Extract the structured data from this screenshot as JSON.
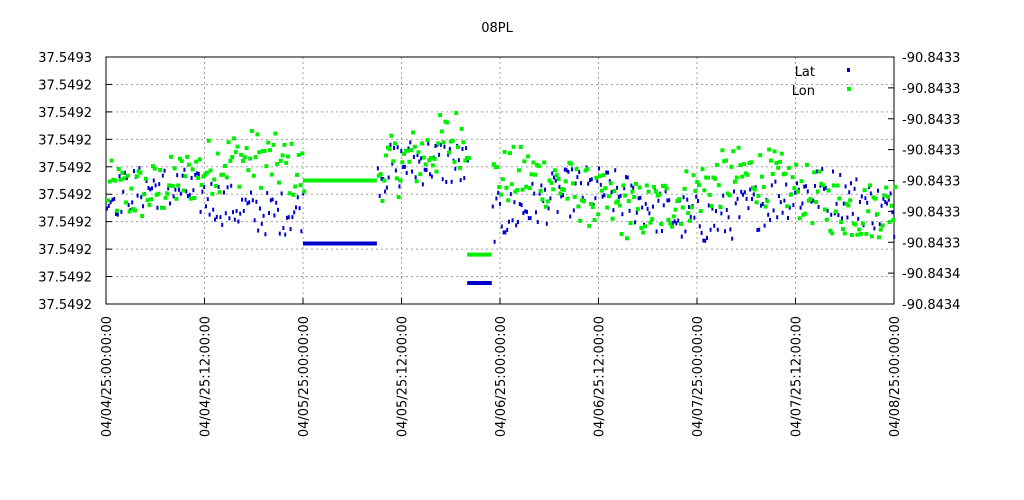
{
  "chart_data": {
    "type": "scatter",
    "title": "08PL",
    "xlabel": "",
    "ylabel": "",
    "x_range": [
      "04/04/25 00:00:00",
      "04/08/25 00:00:00"
    ],
    "x_tick_labels": [
      "04/04/25:00:00:00",
      "04/04/25:12:00:00",
      "04/05/25:00:00:00",
      "04/05/25:12:00:00",
      "04/06/25:00:00:00",
      "04/06/25:12:00:00",
      "04/07/25:00:00:00",
      "04/07/25:12:00:00",
      "04/08/25:00:00:00"
    ],
    "y_left_tick_labels": [
      "37.5493",
      "37.5492",
      "37.5492",
      "37.5492",
      "37.5492",
      "37.5492",
      "37.5492",
      "37.5492",
      "37.5492",
      "37.5492"
    ],
    "y_right_tick_labels": [
      "-90.8433",
      "-90.8433",
      "-90.8433",
      "-90.8433",
      "-90.8433",
      "-90.8433",
      "-90.8433",
      "-90.8434",
      "-90.8434"
    ],
    "grid": true,
    "legend_position": "top-right",
    "series": [
      {
        "name": "Lat",
        "axis": "left",
        "color": "#0000cc",
        "marker": "square",
        "baseline_segments": [
          {
            "start": "04/04/25 00:00",
            "end": "04/05/25 00:00",
            "level": 0.42,
            "spread": 0.09
          },
          {
            "start": "04/05/25 00:00",
            "end": "04/05/25 09:00",
            "flat": 0.245
          },
          {
            "start": "04/05/25 09:00",
            "end": "04/05/25 20:00",
            "level": 0.52,
            "spread": 0.1
          },
          {
            "start": "04/05/25 20:00",
            "end": "04/05/25 23:00",
            "flat": 0.085
          },
          {
            "start": "04/05/25 23:00",
            "end": "04/08/25 00:00",
            "level": 0.4,
            "spread": 0.1
          }
        ]
      },
      {
        "name": "Lon",
        "axis": "right",
        "color": "#00ee00",
        "marker": "square",
        "baseline_segments": [
          {
            "start": "04/04/25 00:00",
            "end": "04/05/25 00:00",
            "level": 0.52,
            "spread": 0.12
          },
          {
            "start": "04/05/25 00:00",
            "end": "04/05/25 09:00",
            "flat": 0.5
          },
          {
            "start": "04/05/25 09:00",
            "end": "04/05/25 20:00",
            "level": 0.62,
            "spread": 0.13
          },
          {
            "start": "04/05/25 20:00",
            "end": "04/05/25 23:00",
            "flat": 0.2
          },
          {
            "start": "04/05/25 23:00",
            "end": "04/08/25 00:00",
            "level": 0.45,
            "spread": 0.12
          }
        ]
      }
    ]
  }
}
